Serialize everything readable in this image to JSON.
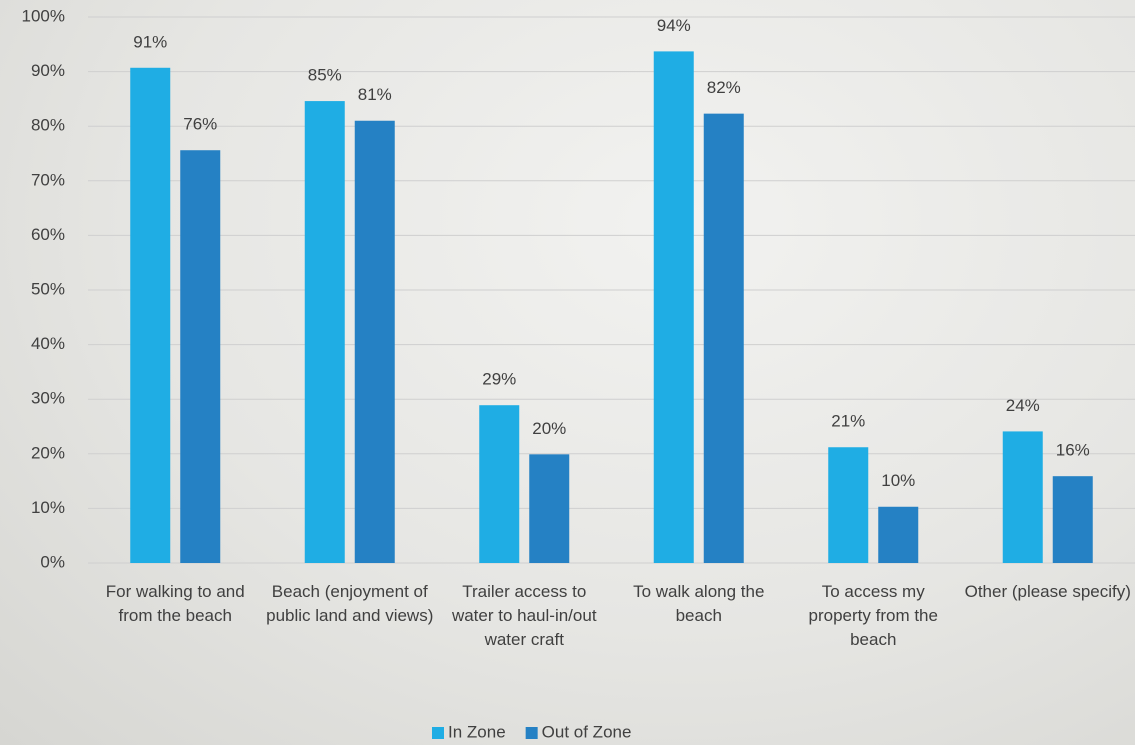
{
  "chart_data": {
    "type": "bar",
    "categories": [
      "For walking to and from the beach",
      "Beach (enjoyment of public land and views)",
      "Trailer access to water to haul-in/out water craft",
      "To walk along the beach",
      "To access my property from the beach",
      "Other (please specify)"
    ],
    "series": [
      {
        "name": "In Zone",
        "color": "#1fade4",
        "values": [
          90.7,
          84.6,
          28.9,
          93.7,
          21.2,
          24.1
        ],
        "value_labels": [
          "91%",
          "85%",
          "29%",
          "94%",
          "21%",
          "24%"
        ]
      },
      {
        "name": "Out of Zone",
        "color": "#2581c4",
        "values": [
          75.6,
          81.0,
          19.9,
          82.3,
          10.3,
          15.9
        ],
        "value_labels": [
          "76%",
          "81%",
          "20%",
          "82%",
          "10%",
          "16%"
        ]
      }
    ],
    "ylim": [
      0,
      100
    ],
    "yticks": [
      {
        "value": 0,
        "label": "0%"
      },
      {
        "value": 10,
        "label": "10%"
      },
      {
        "value": 20,
        "label": "20%"
      },
      {
        "value": 30,
        "label": "30%"
      },
      {
        "value": 40,
        "label": "40%"
      },
      {
        "value": 50,
        "label": "50%"
      },
      {
        "value": 60,
        "label": "60%"
      },
      {
        "value": 70,
        "label": "70%"
      },
      {
        "value": 80,
        "label": "80%"
      },
      {
        "value": 90,
        "label": "90%"
      },
      {
        "value": 100,
        "label": "100%"
      }
    ],
    "grid": true,
    "legend": "bottom"
  }
}
